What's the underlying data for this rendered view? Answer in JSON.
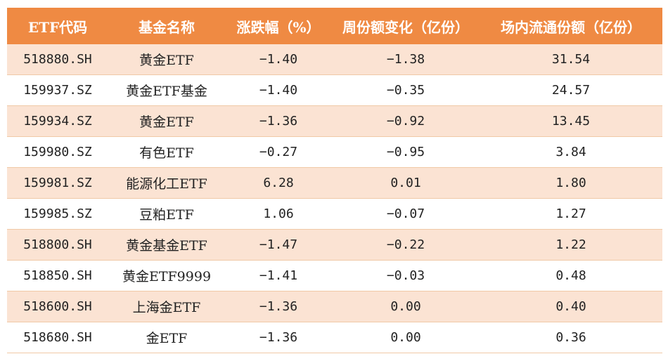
{
  "table": {
    "headers": [
      "ETF代码",
      "基金名称",
      "涨跌幅（%）",
      "周份额变化（亿份）",
      "场内流通份额（亿份）"
    ],
    "rows": [
      [
        "518880.SH",
        "黄金ETF",
        "−1.40",
        "−1.38",
        "31.54"
      ],
      [
        "159937.SZ",
        "黄金ETF基金",
        "−1.40",
        "−0.35",
        "24.57"
      ],
      [
        "159934.SZ",
        "黄金ETF",
        "−1.36",
        "−0.92",
        "13.45"
      ],
      [
        "159980.SZ",
        "有色ETF",
        "−0.27",
        "−0.95",
        "3.84"
      ],
      [
        "159981.SZ",
        "能源化工ETF",
        "6.28",
        "0.01",
        "1.80"
      ],
      [
        "159985.SZ",
        "豆粕ETF",
        "1.06",
        "−0.07",
        "1.27"
      ],
      [
        "518800.SH",
        "黄金基金ETF",
        "−1.47",
        "−0.22",
        "1.22"
      ],
      [
        "518850.SH",
        "黄金ETF9999",
        "−1.41",
        "−0.03",
        "0.48"
      ],
      [
        "518600.SH",
        "上海金ETF",
        "−1.36",
        "0.00",
        "0.40"
      ],
      [
        "518680.SH",
        "金ETF",
        "−1.36",
        "0.00",
        "0.36"
      ]
    ]
  },
  "colors": {
    "header_bg": "#ef8a43",
    "alt_row_bg": "#fbe3d3"
  }
}
